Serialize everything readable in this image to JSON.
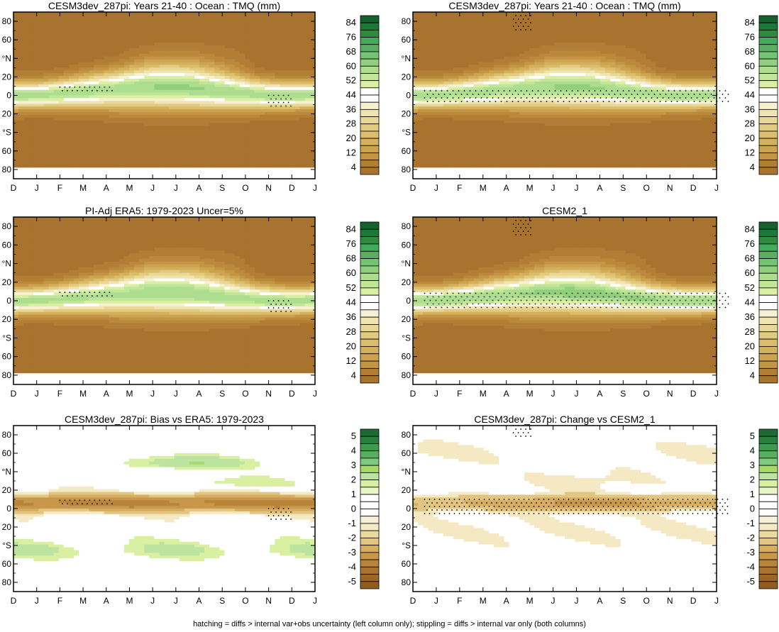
{
  "caption": "hatching = diffs > internal var+obs uncertainty (left column only); stippling = diffs > internal var only (both columns)",
  "palettes": {
    "absolute": [
      "#a8732e",
      "#b27e35",
      "#bb893c",
      "#c49545",
      "#cca34f",
      "#d4b05c",
      "#dbbd6c",
      "#e2ca7f",
      "#e9d795",
      "#f0e4b0",
      "#f7f0d2",
      "#ffffff",
      "#d9f0a3",
      "#c2e699",
      "#addd8e",
      "#91cf7c",
      "#74c476",
      "#5aae61",
      "#41ab5d",
      "#2e8b3e",
      "#1b7837",
      "#15602b"
    ],
    "difference": [
      "#a8732e",
      "#b8843a",
      "#c7974a",
      "#d6ad62",
      "#e2c580",
      "#ecd9a0",
      "#f4e9c3",
      "#ffffff",
      "#d9f0a3",
      "#bde3a0",
      "#a6d96a",
      "#7fc97f",
      "#5aae61",
      "#3f9a4f",
      "#2a7f3e",
      "#1b6b32"
    ]
  },
  "chart_data": [
    {
      "type": "heatmap",
      "title": "CESM3dev_287pi: Years 21-40 : Ocean : TMQ (mm)",
      "x_ticks": [
        "D",
        "J",
        "F",
        "M",
        "A",
        "M",
        "J",
        "J",
        "A",
        "S",
        "O",
        "N",
        "D",
        "J"
      ],
      "y_ticks": [
        "80",
        "60",
        "°N",
        "20",
        "0",
        "20",
        "°S",
        "60",
        "80"
      ],
      "ylim": [
        -90,
        90
      ],
      "colorbar_labels": [
        "84",
        "76",
        "68",
        "60",
        "52",
        "44",
        "36",
        "28",
        "20",
        "12",
        "4"
      ],
      "variant": "absolute",
      "stipple": "model"
    },
    {
      "type": "heatmap",
      "title": "CESM3dev_287pi: Years 21-40 : Ocean : TMQ (mm)",
      "x_ticks": [
        "D",
        "J",
        "F",
        "M",
        "A",
        "M",
        "J",
        "J",
        "A",
        "S",
        "O",
        "N",
        "D",
        "J"
      ],
      "y_ticks": [
        "80",
        "60",
        "°N",
        "20",
        "0",
        "20",
        "°S",
        "60",
        "80"
      ],
      "ylim": [
        -90,
        90
      ],
      "colorbar_labels": [
        "84",
        "76",
        "68",
        "60",
        "52",
        "44",
        "36",
        "28",
        "20",
        "12",
        "4"
      ],
      "variant": "absolute",
      "stipple": "model_right"
    },
    {
      "type": "heatmap",
      "title": "PI-Adj ERA5: 1979-2023 Uncer=5%",
      "x_ticks": [
        "D",
        "J",
        "F",
        "M",
        "A",
        "M",
        "J",
        "J",
        "A",
        "S",
        "O",
        "N",
        "D",
        "J"
      ],
      "y_ticks": [
        "80",
        "60",
        "°N",
        "20",
        "0",
        "20",
        "°S",
        "60",
        "80"
      ],
      "ylim": [
        -90,
        90
      ],
      "colorbar_labels": [
        "84",
        "76",
        "68",
        "60",
        "52",
        "44",
        "36",
        "28",
        "20",
        "12",
        "4"
      ],
      "variant": "absolute_obs",
      "stipple": "obs"
    },
    {
      "type": "heatmap",
      "title": "CESM2_1",
      "x_ticks": [
        "D",
        "J",
        "F",
        "M",
        "A",
        "M",
        "J",
        "J",
        "A",
        "S",
        "O",
        "N",
        "D",
        "J"
      ],
      "y_ticks": [
        "80",
        "60",
        "°N",
        "20",
        "0",
        "20",
        "°S",
        "60",
        "80"
      ],
      "ylim": [
        -90,
        90
      ],
      "colorbar_labels": [
        "84",
        "76",
        "68",
        "60",
        "52",
        "44",
        "36",
        "28",
        "20",
        "12",
        "4"
      ],
      "variant": "absolute_cesm2",
      "stipple": "cesm2"
    },
    {
      "type": "heatmap",
      "title": "CESM3dev_287pi: Bias vs ERA5: 1979-2023",
      "x_ticks": [
        "D",
        "J",
        "F",
        "M",
        "A",
        "M",
        "J",
        "J",
        "A",
        "S",
        "O",
        "N",
        "D",
        "J"
      ],
      "y_ticks": [
        "80",
        "60",
        "°N",
        "20",
        "0",
        "20",
        "°S",
        "60",
        "80"
      ],
      "ylim": [
        -90,
        90
      ],
      "colorbar_labels": [
        "5",
        "4",
        "3",
        "2",
        "1",
        "0",
        "-1",
        "-2",
        "-3",
        "-4",
        "-5"
      ],
      "variant": "bias",
      "stipple": "bias"
    },
    {
      "type": "heatmap",
      "title": "CESM3dev_287pi: Change vs CESM2_1",
      "x_ticks": [
        "D",
        "J",
        "F",
        "M",
        "A",
        "M",
        "J",
        "J",
        "A",
        "S",
        "O",
        "N",
        "D",
        "J"
      ],
      "y_ticks": [
        "80",
        "60",
        "°N",
        "20",
        "0",
        "20",
        "°S",
        "60",
        "80"
      ],
      "ylim": [
        -90,
        90
      ],
      "colorbar_labels": [
        "5",
        "4",
        "3",
        "2",
        "1",
        "0",
        "-1",
        "-2",
        "-3",
        "-4",
        "-5"
      ],
      "variant": "change",
      "stipple": "change"
    }
  ]
}
